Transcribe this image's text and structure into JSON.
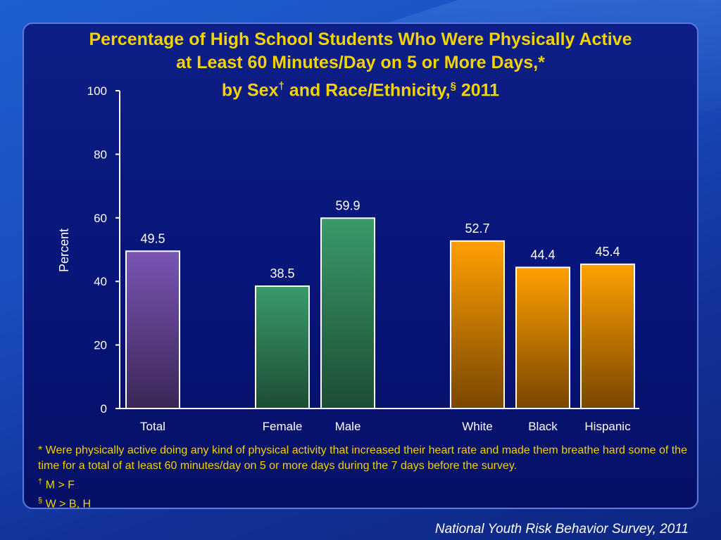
{
  "title": {
    "line1": "Percentage of High School Students Who Were Physically Active",
    "line2": "at Least 60 Minutes/Day on 5 or More Days,*",
    "line3_a": "by Sex",
    "line3_dagger": "†",
    "line3_b": " and Race/Ethnicity,",
    "line3_section": "§",
    "line3_c": " 2011"
  },
  "footnotes": {
    "star": "* Were physically active doing any kind of physical activity that increased their heart rate and made them breathe hard some of the time for a total of at least 60 minutes/day on 5 or more days during the 7 days before the survey.",
    "dagger_mark": "†",
    "dagger_text": " M > F",
    "section_mark": "§",
    "section_text": " W > B, H"
  },
  "source": "National Youth Risk Behavior Survey, 2011",
  "chart_data": {
    "type": "bar",
    "ylabel": "Percent",
    "ylim": [
      0,
      100
    ],
    "yticks": [
      0,
      20,
      40,
      60,
      80,
      100
    ],
    "grid": false,
    "categories": [
      "Total",
      "Female",
      "Male",
      "White",
      "Black",
      "Hispanic"
    ],
    "values": [
      49.5,
      38.5,
      59.9,
      52.7,
      44.4,
      45.4
    ],
    "value_labels": [
      "49.5",
      "38.5",
      "59.9",
      "52.7",
      "44.4",
      "45.4"
    ],
    "groups": [
      "total",
      "sex",
      "sex",
      "race",
      "race",
      "race"
    ],
    "colors": {
      "total": [
        "#7a55b4",
        "#3b2656"
      ],
      "sex": [
        "#3a9a6a",
        "#1d4d34"
      ],
      "race": [
        "#ffa000",
        "#7a4600"
      ]
    }
  }
}
